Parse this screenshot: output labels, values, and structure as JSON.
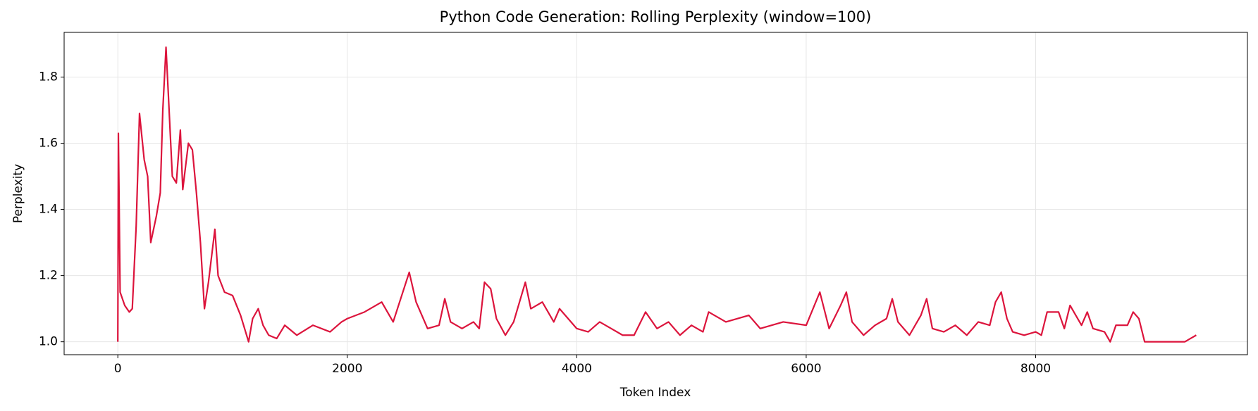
{
  "chart_data": {
    "type": "line",
    "title": "Python Code Generation: Rolling Perplexity (window=100)",
    "xlabel": "Token Index",
    "ylabel": "Perplexity",
    "color": "#dc143c",
    "grid": true,
    "xlim": [
      -468,
      9846
    ],
    "ylim": [
      0.961,
      1.935
    ],
    "xticks": [
      0,
      2000,
      4000,
      6000,
      8000
    ],
    "yticks": [
      {
        "value": 1,
        "label": "1.0"
      },
      1.2,
      1.4,
      1.6,
      1.8
    ],
    "x": [
      0,
      5,
      20,
      60,
      100,
      126,
      160,
      189,
      230,
      260,
      287,
      336,
      370,
      392,
      420,
      440,
      475,
      510,
      545,
      566,
      615,
      650,
      685,
      720,
      755,
      790,
      846,
      874,
      930,
      1000,
      1070,
      1140,
      1175,
      1224,
      1266,
      1315,
      1385,
      1455,
      1560,
      1700,
      1850,
      1950,
      2000,
      2150,
      2300,
      2400,
      2540,
      2600,
      2700,
      2800,
      2850,
      2900,
      3000,
      3100,
      3150,
      3196,
      3250,
      3300,
      3378,
      3450,
      3552,
      3600,
      3700,
      3800,
      3850,
      4000,
      4100,
      4200,
      4300,
      4400,
      4500,
      4600,
      4700,
      4800,
      4900,
      5000,
      5100,
      5150,
      5300,
      5500,
      5600,
      5800,
      6000,
      6119,
      6200,
      6300,
      6350,
      6400,
      6500,
      6600,
      6700,
      6750,
      6800,
      6900,
      7000,
      7050,
      7100,
      7200,
      7300,
      7400,
      7500,
      7600,
      7650,
      7700,
      7750,
      7800,
      7900,
      8000,
      8050,
      8100,
      8200,
      8250,
      8300,
      8400,
      8450,
      8500,
      8600,
      8650,
      8700,
      8800,
      8850,
      8900,
      8950,
      9000,
      9300,
      9350,
      9400
    ],
    "values": [
      1.0,
      1.63,
      1.15,
      1.11,
      1.09,
      1.1,
      1.35,
      1.69,
      1.55,
      1.5,
      1.3,
      1.38,
      1.45,
      1.7,
      1.89,
      1.75,
      1.5,
      1.48,
      1.64,
      1.46,
      1.6,
      1.58,
      1.45,
      1.3,
      1.1,
      1.18,
      1.34,
      1.2,
      1.15,
      1.14,
      1.08,
      1.0,
      1.07,
      1.1,
      1.05,
      1.02,
      1.01,
      1.05,
      1.02,
      1.05,
      1.03,
      1.06,
      1.07,
      1.09,
      1.12,
      1.06,
      1.21,
      1.12,
      1.04,
      1.05,
      1.13,
      1.06,
      1.04,
      1.06,
      1.04,
      1.18,
      1.16,
      1.07,
      1.02,
      1.06,
      1.18,
      1.1,
      1.12,
      1.06,
      1.1,
      1.04,
      1.03,
      1.06,
      1.04,
      1.02,
      1.02,
      1.09,
      1.04,
      1.06,
      1.02,
      1.05,
      1.03,
      1.09,
      1.06,
      1.08,
      1.04,
      1.06,
      1.05,
      1.15,
      1.04,
      1.11,
      1.15,
      1.06,
      1.02,
      1.05,
      1.07,
      1.13,
      1.06,
      1.02,
      1.08,
      1.13,
      1.04,
      1.03,
      1.05,
      1.02,
      1.06,
      1.05,
      1.12,
      1.15,
      1.07,
      1.03,
      1.02,
      1.03,
      1.02,
      1.09,
      1.09,
      1.04,
      1.11,
      1.05,
      1.09,
      1.04,
      1.03,
      1.0,
      1.05,
      1.05,
      1.09,
      1.07,
      1.0,
      1.0,
      1.0,
      1.01,
      1.02
    ]
  }
}
